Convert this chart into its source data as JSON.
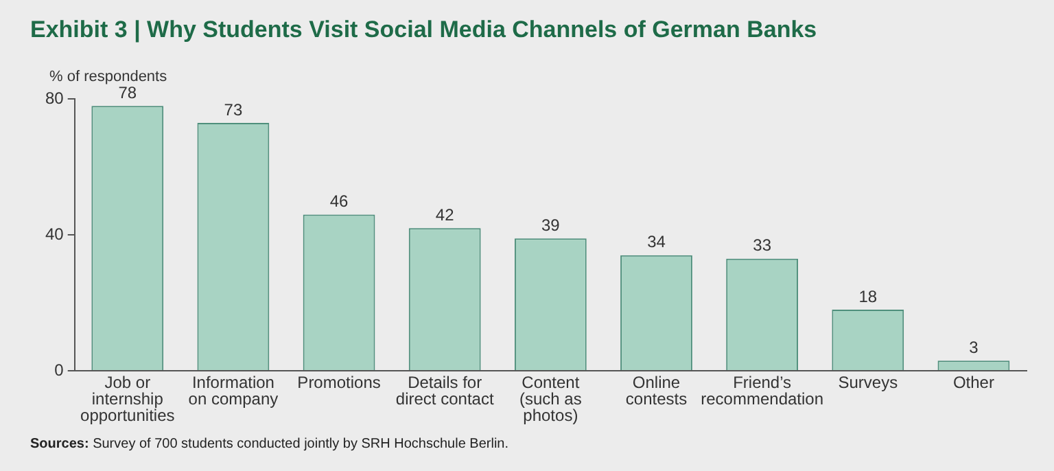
{
  "chart_data": {
    "type": "bar",
    "title": "Exhibit 3 | Why Students Visit Social Media Channels of German Banks",
    "ylabel": "% of respondents",
    "categories": [
      "Job or\ninternship\nopportunities",
      "Information\non company",
      "Promotions",
      "Details for\ndirect contact",
      "Content\n(such as\nphotos)",
      "Online\ncontests",
      "Friend’s\nrecommendation",
      "Surveys",
      "Other"
    ],
    "values": [
      78,
      73,
      46,
      42,
      39,
      34,
      33,
      18,
      3
    ],
    "color": "#a8d3c3",
    "ylim": [
      0,
      80
    ],
    "yticks": [
      0,
      40,
      80
    ],
    "grid": false,
    "data_labels": true,
    "legend": false,
    "annotations": [
      "Sources: Survey of 700 students conducted jointly by SRH Hochschule Berlin."
    ]
  }
}
